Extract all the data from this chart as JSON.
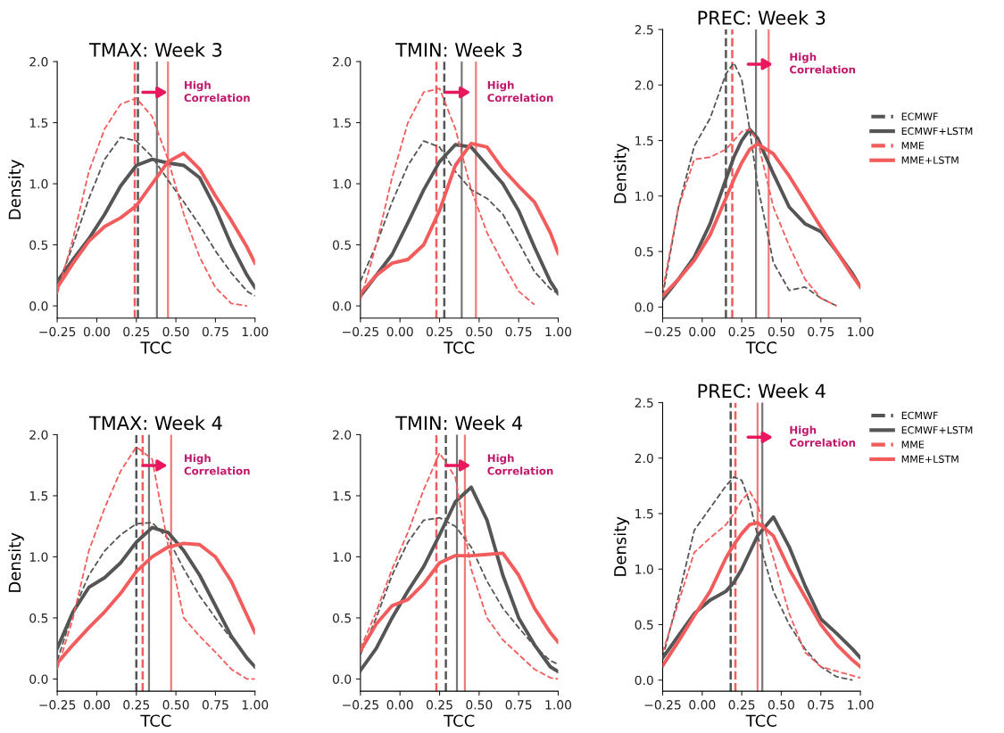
{
  "chart_data": [
    {
      "type": "line",
      "title": "TMAX: Week 3",
      "xlabel": "TCC",
      "ylabel": "Density",
      "xlim": [
        -0.25,
        1.0
      ],
      "xticks": [
        {
          "value": -0.25,
          "label": "−0.25"
        },
        {
          "value": 0,
          "label": "0.00"
        },
        {
          "value": 0.25,
          "label": "0.25"
        },
        {
          "value": 0.5,
          "label": "0.50"
        },
        {
          "value": 0.75,
          "label": "0.75"
        },
        {
          "value": 1.0,
          "label": "1.00"
        }
      ],
      "ylim": [
        -0.1,
        2.0
      ],
      "yticks": [
        {
          "value": 0,
          "label": "0.0"
        },
        {
          "value": 0.5,
          "label": "0.5"
        },
        {
          "value": 1.0,
          "label": "1.0"
        },
        {
          "value": 1.5,
          "label": "1.5"
        },
        {
          "value": 2.0,
          "label": "2.0"
        }
      ],
      "x": [
        -0.25,
        -0.15,
        -0.05,
        0.05,
        0.15,
        0.25,
        0.35,
        0.45,
        0.55,
        0.65,
        0.75,
        0.85,
        0.95,
        1.0
      ],
      "series": [
        {
          "color": "#555555",
          "line_style": "dashed",
          "values": [
            0.15,
            0.5,
            0.88,
            1.2,
            1.38,
            1.35,
            1.22,
            1.03,
            0.85,
            0.66,
            0.45,
            0.27,
            0.12,
            0.08
          ]
        },
        {
          "color": "#555555",
          "line_style": "solid",
          "values": [
            0.2,
            0.38,
            0.55,
            0.75,
            0.98,
            1.15,
            1.2,
            1.17,
            1.15,
            1.05,
            0.8,
            0.5,
            0.25,
            0.15
          ]
        },
        {
          "color": "#f25c5c",
          "line_style": "dashed",
          "values": [
            0.1,
            0.55,
            1.1,
            1.45,
            1.65,
            1.7,
            1.55,
            1.2,
            0.75,
            0.4,
            0.15,
            0.02,
            0.0,
            null
          ]
        },
        {
          "color": "#f25c5c",
          "line_style": "solid",
          "values": [
            0.15,
            0.35,
            0.53,
            0.65,
            0.72,
            0.82,
            1.0,
            1.18,
            1.25,
            1.12,
            0.9,
            0.7,
            0.48,
            0.35
          ]
        }
      ],
      "ref_lines": [
        {
          "axis": "x",
          "value": 0.26,
          "color": "#555555",
          "line_style": "dashed"
        },
        {
          "axis": "x",
          "value": 0.38,
          "color": "#777777",
          "line_style": "solid"
        },
        {
          "axis": "x",
          "value": 0.24,
          "color": "#f25c5c",
          "line_style": "dashed"
        },
        {
          "axis": "x",
          "value": 0.45,
          "color": "#f27a7a",
          "line_style": "solid"
        }
      ],
      "annotations": [
        "High\nCorrelation"
      ]
    },
    {
      "type": "line",
      "title": "TMIN: Week 3",
      "xlabel": "TCC",
      "xlim": [
        -0.25,
        1.0
      ],
      "xticks": [
        {
          "value": -0.25,
          "label": "−0.25"
        },
        {
          "value": 0,
          "label": "0.00"
        },
        {
          "value": 0.25,
          "label": "0.25"
        },
        {
          "value": 0.5,
          "label": "0.50"
        },
        {
          "value": 0.75,
          "label": "0.75"
        },
        {
          "value": 1.0,
          "label": "1.00"
        }
      ],
      "ylim": [
        -0.1,
        2.0
      ],
      "yticks": [
        {
          "value": 0,
          "label": "0.0"
        },
        {
          "value": 0.5,
          "label": "0.5"
        },
        {
          "value": 1.0,
          "label": "1.0"
        },
        {
          "value": 1.5,
          "label": "1.5"
        },
        {
          "value": 2.0,
          "label": "2.0"
        }
      ],
      "x": [
        -0.25,
        -0.15,
        -0.05,
        0.05,
        0.15,
        0.25,
        0.35,
        0.45,
        0.55,
        0.65,
        0.75,
        0.85,
        0.95,
        1.0
      ],
      "series": [
        {
          "color": "#555555",
          "line_style": "dashed",
          "values": [
            0.2,
            0.5,
            0.85,
            1.15,
            1.35,
            1.3,
            1.1,
            0.95,
            0.88,
            0.75,
            0.52,
            0.28,
            0.14,
            0.1
          ]
        },
        {
          "color": "#555555",
          "line_style": "solid",
          "values": [
            0.08,
            0.25,
            0.42,
            0.68,
            0.95,
            1.18,
            1.32,
            1.3,
            1.15,
            1.0,
            0.78,
            0.48,
            0.2,
            0.1
          ]
        },
        {
          "color": "#f25c5c",
          "line_style": "dashed",
          "values": [
            0.05,
            0.5,
            1.05,
            1.5,
            1.75,
            1.78,
            1.45,
            0.95,
            0.6,
            0.35,
            0.12,
            0.01,
            null,
            null
          ]
        },
        {
          "color": "#f25c5c",
          "line_style": "solid",
          "values": [
            0.1,
            0.25,
            0.35,
            0.38,
            0.5,
            0.78,
            1.15,
            1.33,
            1.3,
            1.12,
            0.98,
            0.85,
            0.6,
            0.43
          ]
        }
      ],
      "ref_lines": [
        {
          "axis": "x",
          "value": 0.28,
          "color": "#555555",
          "line_style": "dashed"
        },
        {
          "axis": "x",
          "value": 0.39,
          "color": "#777777",
          "line_style": "solid"
        },
        {
          "axis": "x",
          "value": 0.23,
          "color": "#f25c5c",
          "line_style": "dashed"
        },
        {
          "axis": "x",
          "value": 0.48,
          "color": "#f27a7a",
          "line_style": "solid"
        }
      ],
      "annotations": [
        "High\nCorrelation"
      ]
    },
    {
      "type": "line",
      "title": "PREC: Week 3",
      "xlabel": "TCC",
      "ylabel": "Density",
      "legend": "right",
      "xlim": [
        -0.25,
        1.0
      ],
      "xticks": [
        {
          "value": -0.25,
          "label": "−0.25"
        },
        {
          "value": 0,
          "label": "0.00"
        },
        {
          "value": 0.25,
          "label": "0.25"
        },
        {
          "value": 0.5,
          "label": "0.50"
        },
        {
          "value": 0.75,
          "label": "0.75"
        },
        {
          "value": 1.0,
          "label": "1.00"
        }
      ],
      "ylim": [
        -0.1,
        2.5
      ],
      "yticks": [
        {
          "value": 0,
          "label": "0.0"
        },
        {
          "value": 0.5,
          "label": "0.5"
        },
        {
          "value": 1.0,
          "label": "1.0"
        },
        {
          "value": 1.5,
          "label": "1.5"
        },
        {
          "value": 2.0,
          "label": "2.0"
        },
        {
          "value": 2.5,
          "label": "2.5"
        }
      ],
      "x": [
        -0.25,
        -0.15,
        -0.05,
        0.05,
        0.15,
        0.2,
        0.25,
        0.3,
        0.35,
        0.45,
        0.55,
        0.65,
        0.75,
        0.85,
        0.95,
        1.0
      ],
      "series": [
        {
          "name": "ECMWF",
          "color": "#555555",
          "line_style": "dashed",
          "values": [
            0.1,
            0.9,
            1.45,
            1.7,
            2.1,
            2.2,
            2.05,
            1.6,
            1.1,
            0.4,
            0.15,
            0.18,
            0.08,
            0.01,
            null,
            null
          ]
        },
        {
          "name": "ECMWF+LSTM",
          "color": "#555555",
          "line_style": "solid",
          "values": [
            0.07,
            0.25,
            0.45,
            0.75,
            1.15,
            1.35,
            1.5,
            1.6,
            1.52,
            1.2,
            0.9,
            0.75,
            0.68,
            0.5,
            0.3,
            0.18
          ]
        },
        {
          "name": "MME",
          "color": "#f25c5c",
          "line_style": "dashed",
          "values": [
            0.15,
            0.9,
            1.33,
            1.35,
            1.42,
            1.5,
            1.58,
            1.6,
            1.5,
            0.9,
            0.55,
            0.25,
            0.08,
            0.01,
            null,
            null
          ]
        },
        {
          "name": "MME+LSTM",
          "color": "#f25c5c",
          "line_style": "solid",
          "values": [
            0.1,
            0.25,
            0.42,
            0.65,
            0.98,
            1.15,
            1.3,
            1.42,
            1.47,
            1.38,
            1.18,
            0.95,
            0.72,
            0.5,
            0.28,
            0.18
          ]
        }
      ],
      "ref_lines": [
        {
          "axis": "x",
          "value": 0.15,
          "color": "#555555",
          "line_style": "dashed"
        },
        {
          "axis": "x",
          "value": 0.34,
          "color": "#777777",
          "line_style": "solid"
        },
        {
          "axis": "x",
          "value": 0.19,
          "color": "#f25c5c",
          "line_style": "dashed"
        },
        {
          "axis": "x",
          "value": 0.42,
          "color": "#f27a7a",
          "line_style": "solid"
        }
      ],
      "annotations": [
        "High\nCorrelation"
      ]
    },
    {
      "type": "line",
      "title": "TMAX: Week 4",
      "xlabel": "TCC",
      "ylabel": "Density",
      "xlim": [
        -0.25,
        1.0
      ],
      "xticks": [
        {
          "value": -0.25,
          "label": "−0.25"
        },
        {
          "value": 0,
          "label": "0.00"
        },
        {
          "value": 0.25,
          "label": "0.25"
        },
        {
          "value": 0.5,
          "label": "0.50"
        },
        {
          "value": 0.75,
          "label": "0.75"
        },
        {
          "value": 1.0,
          "label": "1.00"
        }
      ],
      "ylim": [
        -0.1,
        2.0
      ],
      "yticks": [
        {
          "value": 0,
          "label": "0.0"
        },
        {
          "value": 0.5,
          "label": "0.5"
        },
        {
          "value": 1.0,
          "label": "1.0"
        },
        {
          "value": 1.5,
          "label": "1.5"
        },
        {
          "value": 2.0,
          "label": "2.0"
        }
      ],
      "x": [
        -0.25,
        -0.15,
        -0.05,
        0.05,
        0.15,
        0.25,
        0.35,
        0.45,
        0.55,
        0.65,
        0.75,
        0.85,
        0.95,
        1.0
      ],
      "series": [
        {
          "color": "#555555",
          "line_style": "dashed",
          "values": [
            0.15,
            0.55,
            0.85,
            1.05,
            1.18,
            1.27,
            1.28,
            1.15,
            0.9,
            0.68,
            0.5,
            0.33,
            null,
            null
          ]
        },
        {
          "color": "#555555",
          "line_style": "solid",
          "values": [
            0.25,
            0.55,
            0.75,
            0.83,
            0.95,
            1.12,
            1.24,
            1.2,
            1.05,
            0.85,
            0.6,
            0.35,
            0.17,
            0.1
          ]
        },
        {
          "color": "#f25c5c",
          "line_style": "dashed",
          "values": [
            0.08,
            0.5,
            1.05,
            1.4,
            1.7,
            1.9,
            1.8,
            1.1,
            0.5,
            0.35,
            0.22,
            0.08,
            0.0,
            0.0
          ]
        },
        {
          "color": "#f25c5c",
          "line_style": "solid",
          "values": [
            0.13,
            0.28,
            0.42,
            0.55,
            0.7,
            0.88,
            1.0,
            1.08,
            1.11,
            1.1,
            1.0,
            0.8,
            0.52,
            0.38
          ]
        }
      ],
      "ref_lines": [
        {
          "axis": "x",
          "value": 0.25,
          "color": "#555555",
          "line_style": "dashed"
        },
        {
          "axis": "x",
          "value": 0.33,
          "color": "#777777",
          "line_style": "solid"
        },
        {
          "axis": "x",
          "value": 0.29,
          "color": "#f25c5c",
          "line_style": "dashed"
        },
        {
          "axis": "x",
          "value": 0.47,
          "color": "#f27a7a",
          "line_style": "solid"
        }
      ],
      "annotations": [
        "High\nCorrelation"
      ]
    },
    {
      "type": "line",
      "title": "TMIN: Week 4",
      "xlabel": "TCC",
      "xlim": [
        -0.25,
        1.0
      ],
      "xticks": [
        {
          "value": -0.25,
          "label": "−0.25"
        },
        {
          "value": 0,
          "label": "0.00"
        },
        {
          "value": 0.25,
          "label": "0.25"
        },
        {
          "value": 0.5,
          "label": "0.50"
        },
        {
          "value": 0.75,
          "label": "0.75"
        },
        {
          "value": 1.0,
          "label": "1.00"
        }
      ],
      "ylim": [
        -0.1,
        2.0
      ],
      "yticks": [
        {
          "value": 0,
          "label": "0.0"
        },
        {
          "value": 0.5,
          "label": "0.5"
        },
        {
          "value": 1.0,
          "label": "1.0"
        },
        {
          "value": 1.5,
          "label": "1.5"
        },
        {
          "value": 2.0,
          "label": "2.0"
        }
      ],
      "x": [
        -0.25,
        -0.15,
        -0.05,
        0.05,
        0.15,
        0.25,
        0.35,
        0.45,
        0.55,
        0.65,
        0.75,
        0.85,
        0.95,
        1.0
      ],
      "series": [
        {
          "color": "#555555",
          "line_style": "dashed",
          "values": [
            0.2,
            0.5,
            0.85,
            1.12,
            1.3,
            1.32,
            1.25,
            1.08,
            0.8,
            0.58,
            0.42,
            0.27,
            0.15,
            0.12
          ]
        },
        {
          "color": "#555555",
          "line_style": "solid",
          "values": [
            0.07,
            0.25,
            0.5,
            0.72,
            0.92,
            1.18,
            1.45,
            1.57,
            1.3,
            0.85,
            0.5,
            0.28,
            0.1,
            0.06
          ]
        },
        {
          "color": "#f25c5c",
          "line_style": "dashed",
          "values": [
            0.25,
            0.55,
            0.9,
            1.2,
            1.55,
            1.85,
            1.65,
            0.9,
            0.5,
            0.32,
            0.2,
            0.08,
            0.01,
            0.0
          ]
        },
        {
          "color": "#f25c5c",
          "line_style": "solid",
          "values": [
            0.23,
            0.45,
            0.6,
            0.65,
            0.78,
            0.95,
            1.01,
            1.01,
            1.02,
            1.03,
            0.85,
            0.58,
            0.38,
            0.3
          ]
        }
      ],
      "ref_lines": [
        {
          "axis": "x",
          "value": 0.29,
          "color": "#555555",
          "line_style": "dashed"
        },
        {
          "axis": "x",
          "value": 0.36,
          "color": "#777777",
          "line_style": "solid"
        },
        {
          "axis": "x",
          "value": 0.23,
          "color": "#f25c5c",
          "line_style": "dashed"
        },
        {
          "axis": "x",
          "value": 0.41,
          "color": "#f27a7a",
          "line_style": "solid"
        }
      ],
      "annotations": [
        "High\nCorrelation"
      ]
    },
    {
      "type": "line",
      "title": "PREC: Week 4",
      "xlabel": "TCC",
      "ylabel": "Density",
      "legend": "top right",
      "xlim": [
        -0.25,
        1.0
      ],
      "xticks": [
        {
          "value": -0.25,
          "label": "−0.25"
        },
        {
          "value": 0,
          "label": "0.00"
        },
        {
          "value": 0.25,
          "label": "0.25"
        },
        {
          "value": 0.5,
          "label": "0.50"
        },
        {
          "value": 0.75,
          "label": "0.75"
        },
        {
          "value": 1.0,
          "label": "1.00"
        }
      ],
      "ylim": [
        -0.1,
        2.5
      ],
      "yticks": [
        {
          "value": 0,
          "label": "0.0"
        },
        {
          "value": 0.5,
          "label": "0.5"
        },
        {
          "value": 1.0,
          "label": "1.0"
        },
        {
          "value": 1.5,
          "label": "1.5"
        },
        {
          "value": 2.0,
          "label": "2.0"
        },
        {
          "value": 2.5,
          "label": "2.5"
        }
      ],
      "x": [
        -0.25,
        -0.15,
        -0.05,
        0.05,
        0.15,
        0.2,
        0.25,
        0.3,
        0.35,
        0.45,
        0.55,
        0.65,
        0.75,
        0.85,
        0.95,
        1.0
      ],
      "series": [
        {
          "name": "ECMWF",
          "color": "#555555",
          "line_style": "dashed",
          "values": [
            0.2,
            0.75,
            1.35,
            1.55,
            1.75,
            1.83,
            1.8,
            1.6,
            1.3,
            0.8,
            0.5,
            0.28,
            0.12,
            0.03,
            0.0,
            null
          ]
        },
        {
          "name": "ECMWF+LSTM",
          "color": "#555555",
          "line_style": "solid",
          "values": [
            0.2,
            0.4,
            0.6,
            0.72,
            0.8,
            0.88,
            1.0,
            1.15,
            1.3,
            1.47,
            1.2,
            0.85,
            0.55,
            0.42,
            0.28,
            0.2
          ]
        },
        {
          "name": "MME",
          "color": "#f25c5c",
          "line_style": "dashed",
          "values": [
            0.25,
            0.7,
            1.15,
            1.28,
            1.4,
            1.5,
            1.62,
            1.7,
            1.58,
            1.1,
            0.6,
            0.25,
            0.12,
            0.08,
            0.04,
            0.02
          ]
        },
        {
          "name": "MME+LSTM",
          "color": "#f25c5c",
          "line_style": "solid",
          "values": [
            0.13,
            0.35,
            0.58,
            0.8,
            1.1,
            1.22,
            1.32,
            1.4,
            1.42,
            1.3,
            1.0,
            0.75,
            0.5,
            0.32,
            0.18,
            0.12
          ]
        }
      ],
      "ref_lines": [
        {
          "axis": "x",
          "value": 0.18,
          "color": "#555555",
          "line_style": "dashed"
        },
        {
          "axis": "x",
          "value": 0.38,
          "color": "#777777",
          "line_style": "solid"
        },
        {
          "axis": "x",
          "value": 0.21,
          "color": "#f25c5c",
          "line_style": "dashed"
        },
        {
          "axis": "x",
          "value": 0.35,
          "color": "#f27a7a",
          "line_style": "solid"
        }
      ],
      "annotations": [
        "High\nCorrelation"
      ]
    }
  ]
}
